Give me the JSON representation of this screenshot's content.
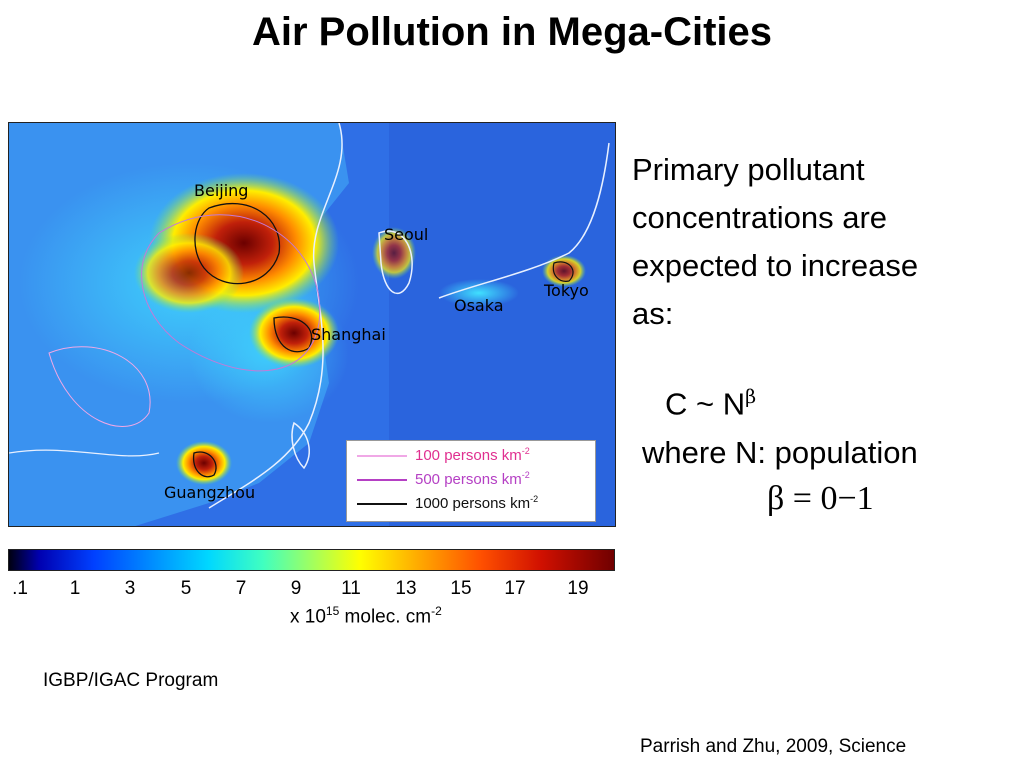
{
  "slide": {
    "title": "Air Pollution in Mega-Cities"
  },
  "map": {
    "cities": [
      "Beijing",
      "Seoul",
      "Tokyo",
      "Osaka",
      "Shanghai",
      "Guangzhou"
    ],
    "legend": {
      "rows": [
        {
          "value": "100",
          "unit": "persons km",
          "exp": "-2",
          "color": "#f0a8e6"
        },
        {
          "value": "500",
          "unit": "persons km",
          "exp": "-2",
          "color": "#b540c4"
        },
        {
          "value": "1000",
          "unit": "persons km",
          "exp": "-2",
          "color": "#111111"
        }
      ]
    },
    "colors": {
      "low": "#000010",
      "mid": "#2a7dff",
      "high": "#7a0a0a"
    }
  },
  "colorbar": {
    "ticks": [
      ".1",
      "1",
      "3",
      "5",
      "7",
      "9",
      "11",
      "13",
      "15",
      "17",
      "19"
    ],
    "unit_prefix": "x 10",
    "unit_exp": "15",
    "unit_mid": " molec. cm",
    "unit_exp2": "-2"
  },
  "text": {
    "lines": [
      "Primary pollutant",
      "concentrations are",
      "expected to increase",
      "as:"
    ],
    "formula_c": "C ~ N",
    "formula_beta": "β",
    "where": "where  N: population",
    "beta_range": "β = 0−1"
  },
  "credits": {
    "program": "IGBP/IGAC Program",
    "citation": "Parrish and Zhu, 2009, Science"
  }
}
